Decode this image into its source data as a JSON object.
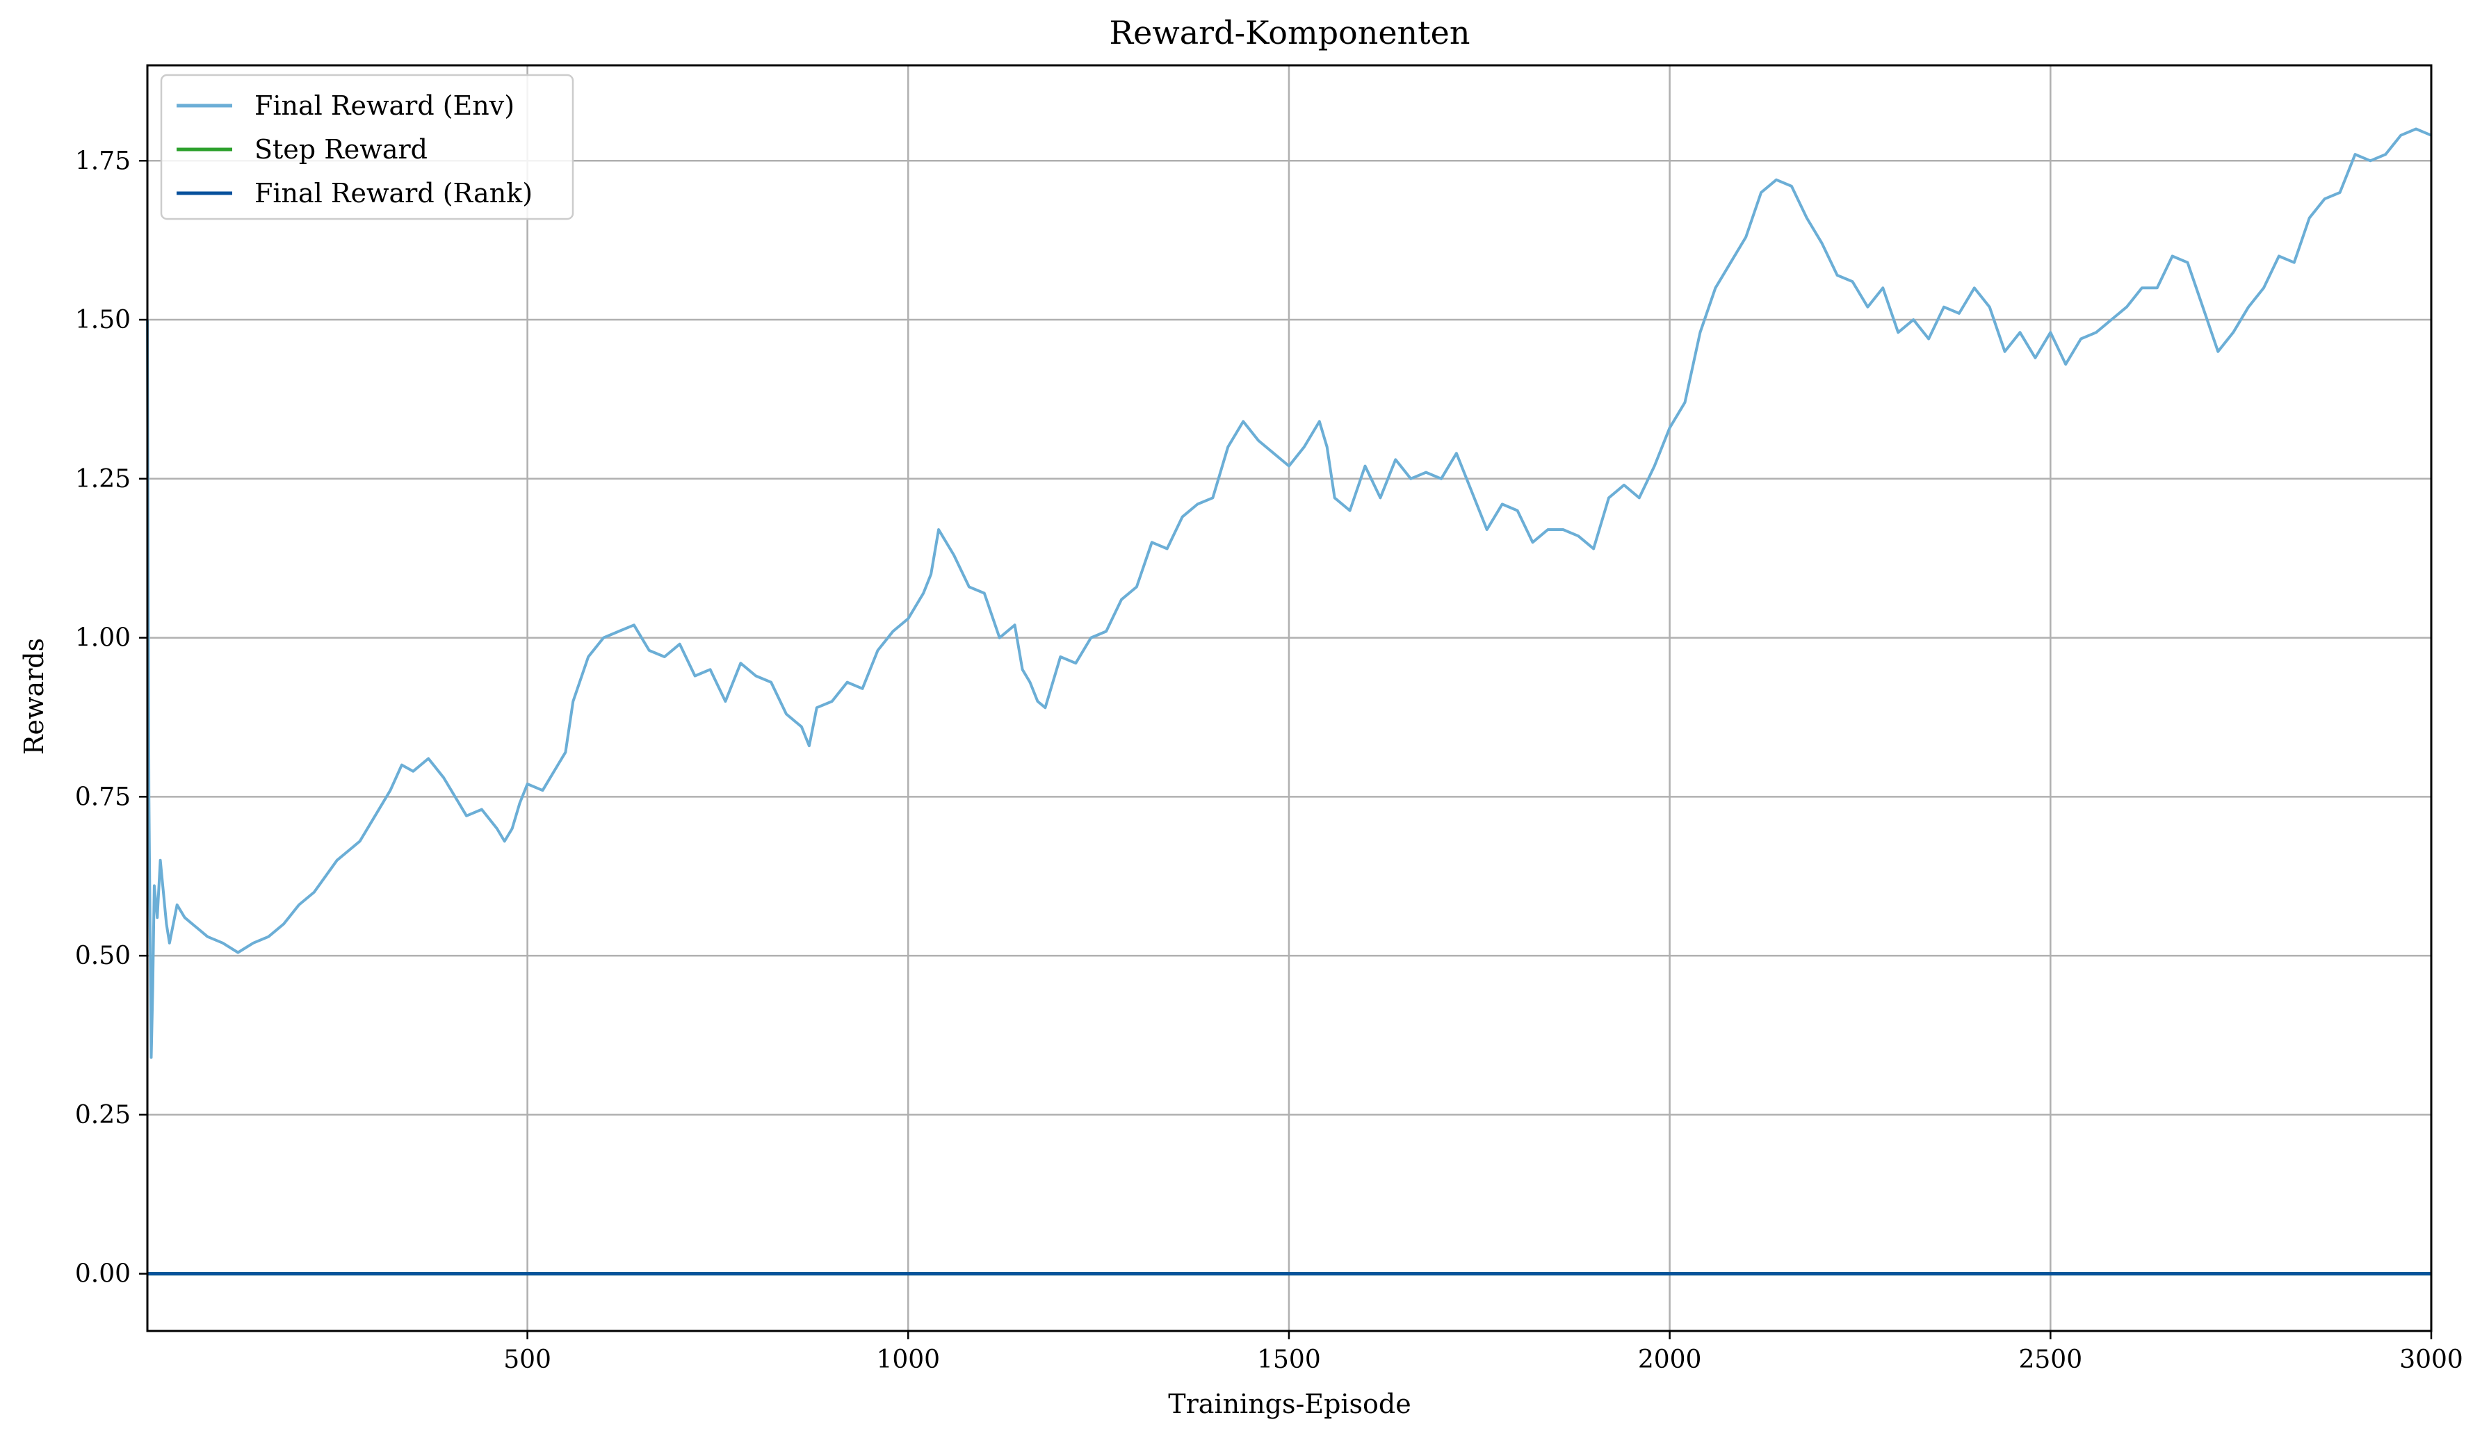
{
  "chart_data": {
    "type": "line",
    "title": "Reward-Komponenten",
    "xlabel": "Trainings-Episode",
    "ylabel": "Rewards",
    "xlim": [
      1,
      3000
    ],
    "ylim": [
      -0.09,
      1.9
    ],
    "xticks": [
      500,
      1000,
      1500,
      2000,
      2500,
      3000
    ],
    "xtick_labels": [
      "500",
      "1000",
      "1500",
      "2000",
      "2500",
      "3000"
    ],
    "yticks": [
      0.0,
      0.25,
      0.5,
      0.75,
      1.0,
      1.25,
      1.5,
      1.75
    ],
    "ytick_labels": [
      "0.00",
      "0.25",
      "0.50",
      "0.75",
      "1.00",
      "1.25",
      "1.50",
      "1.75"
    ],
    "grid": true,
    "legend_position": "top-left",
    "series": [
      {
        "name": "Final Reward (Env)",
        "color": "#6baed6",
        "x": [
          1,
          3,
          6,
          8,
          10,
          14,
          18,
          22,
          26,
          30,
          40,
          50,
          60,
          70,
          80,
          100,
          120,
          140,
          160,
          180,
          200,
          220,
          250,
          280,
          300,
          320,
          335,
          350,
          370,
          390,
          400,
          420,
          440,
          460,
          470,
          480,
          490,
          500,
          520,
          540,
          550,
          560,
          580,
          600,
          620,
          640,
          660,
          680,
          700,
          720,
          740,
          760,
          780,
          800,
          820,
          840,
          860,
          870,
          880,
          900,
          920,
          940,
          960,
          980,
          1000,
          1020,
          1030,
          1040,
          1060,
          1080,
          1100,
          1120,
          1140,
          1150,
          1160,
          1170,
          1180,
          1200,
          1220,
          1240,
          1260,
          1280,
          1300,
          1320,
          1340,
          1360,
          1380,
          1400,
          1420,
          1440,
          1460,
          1480,
          1500,
          1520,
          1540,
          1550,
          1560,
          1580,
          1600,
          1620,
          1640,
          1660,
          1680,
          1700,
          1720,
          1740,
          1760,
          1780,
          1800,
          1820,
          1840,
          1860,
          1880,
          1900,
          1920,
          1940,
          1960,
          1980,
          2000,
          2020,
          2040,
          2060,
          2080,
          2100,
          2120,
          2140,
          2160,
          2180,
          2200,
          2220,
          2240,
          2260,
          2280,
          2300,
          2320,
          2340,
          2360,
          2380,
          2400,
          2420,
          2440,
          2460,
          2480,
          2500,
          2520,
          2540,
          2560,
          2580,
          2600,
          2620,
          2640,
          2660,
          2680,
          2700,
          2720,
          2740,
          2760,
          2780,
          2800,
          2820,
          2840,
          2860,
          2880,
          2900,
          2920,
          2940,
          2960,
          2980,
          3000
        ],
        "values": [
          1.5,
          0.75,
          0.34,
          0.45,
          0.61,
          0.56,
          0.65,
          0.6,
          0.55,
          0.52,
          0.58,
          0.56,
          0.55,
          0.54,
          0.53,
          0.52,
          0.505,
          0.52,
          0.53,
          0.55,
          0.58,
          0.6,
          0.65,
          0.68,
          0.72,
          0.76,
          0.8,
          0.79,
          0.81,
          0.78,
          0.76,
          0.72,
          0.73,
          0.7,
          0.68,
          0.7,
          0.74,
          0.77,
          0.76,
          0.8,
          0.82,
          0.9,
          0.97,
          1.0,
          1.01,
          1.02,
          0.98,
          0.97,
          0.99,
          0.94,
          0.95,
          0.9,
          0.96,
          0.94,
          0.93,
          0.88,
          0.86,
          0.83,
          0.89,
          0.9,
          0.93,
          0.92,
          0.98,
          1.01,
          1.03,
          1.07,
          1.1,
          1.17,
          1.13,
          1.08,
          1.07,
          1.0,
          1.02,
          0.95,
          0.93,
          0.9,
          0.89,
          0.97,
          0.96,
          1.0,
          1.01,
          1.06,
          1.08,
          1.15,
          1.14,
          1.19,
          1.21,
          1.22,
          1.3,
          1.34,
          1.31,
          1.29,
          1.27,
          1.3,
          1.34,
          1.3,
          1.22,
          1.2,
          1.27,
          1.22,
          1.28,
          1.25,
          1.26,
          1.25,
          1.29,
          1.23,
          1.17,
          1.21,
          1.2,
          1.15,
          1.17,
          1.17,
          1.16,
          1.14,
          1.22,
          1.24,
          1.22,
          1.27,
          1.33,
          1.37,
          1.48,
          1.55,
          1.59,
          1.63,
          1.7,
          1.72,
          1.71,
          1.66,
          1.62,
          1.57,
          1.56,
          1.52,
          1.55,
          1.48,
          1.5,
          1.47,
          1.52,
          1.51,
          1.55,
          1.52,
          1.45,
          1.48,
          1.44,
          1.48,
          1.43,
          1.47,
          1.48,
          1.5,
          1.52,
          1.55,
          1.55,
          1.6,
          1.59,
          1.52,
          1.45,
          1.48,
          1.52,
          1.55,
          1.6,
          1.59,
          1.66,
          1.69,
          1.7,
          1.76,
          1.75,
          1.76,
          1.79,
          1.8,
          1.79
        ]
      },
      {
        "name": "Step Reward",
        "color": "#2ca02c",
        "x": [
          1,
          3000
        ],
        "values": [
          0,
          0
        ]
      },
      {
        "name": "Final Reward (Rank)",
        "color": "#08519c",
        "x": [
          1,
          3000
        ],
        "values": [
          0,
          0
        ]
      }
    ]
  }
}
